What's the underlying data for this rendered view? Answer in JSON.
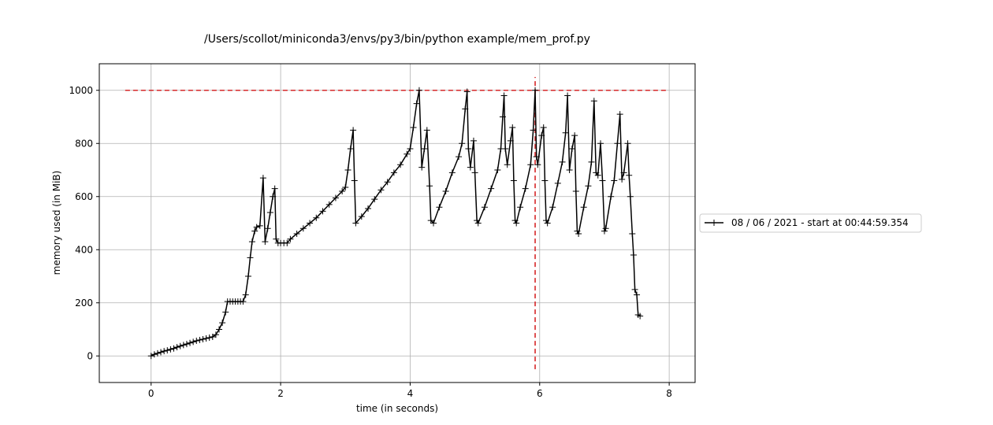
{
  "chart_data": {
    "type": "line",
    "title": "/Users/scollot/miniconda3/envs/py3/bin/python example/mem_prof.py",
    "xlabel": "time (in seconds)",
    "ylabel": "memory used (in MiB)",
    "xlim": [
      -0.8,
      8.4
    ],
    "ylim": [
      -100,
      1100
    ],
    "xticks": [
      0,
      2,
      4,
      6,
      8
    ],
    "yticks": [
      0,
      200,
      400,
      600,
      800,
      1000
    ],
    "grid": true,
    "legend_position": "center-right, outside the plot area",
    "colors": {
      "series": "#000000",
      "reference_lines": "#d62728"
    },
    "series": [
      {
        "name": "08 / 06 / 2021 - start at 00:44:59.354",
        "marker": "+",
        "points": [
          [
            0.0,
            0
          ],
          [
            0.05,
            6
          ],
          [
            0.1,
            10
          ],
          [
            0.15,
            14
          ],
          [
            0.2,
            18
          ],
          [
            0.25,
            21
          ],
          [
            0.3,
            25
          ],
          [
            0.35,
            28
          ],
          [
            0.4,
            33
          ],
          [
            0.45,
            37
          ],
          [
            0.5,
            41
          ],
          [
            0.55,
            45
          ],
          [
            0.6,
            49
          ],
          [
            0.65,
            53
          ],
          [
            0.7,
            57
          ],
          [
            0.75,
            60
          ],
          [
            0.8,
            63
          ],
          [
            0.85,
            66
          ],
          [
            0.9,
            69
          ],
          [
            0.95,
            72
          ],
          [
            1.0,
            80
          ],
          [
            1.05,
            100
          ],
          [
            1.1,
            125
          ],
          [
            1.15,
            165
          ],
          [
            1.18,
            205
          ],
          [
            1.22,
            205
          ],
          [
            1.26,
            205
          ],
          [
            1.3,
            205
          ],
          [
            1.34,
            205
          ],
          [
            1.38,
            205
          ],
          [
            1.42,
            205
          ],
          [
            1.46,
            230
          ],
          [
            1.5,
            300
          ],
          [
            1.53,
            370
          ],
          [
            1.56,
            430
          ],
          [
            1.6,
            470
          ],
          [
            1.63,
            485
          ],
          [
            1.68,
            490
          ],
          [
            1.73,
            670
          ],
          [
            1.76,
            430
          ],
          [
            1.8,
            480
          ],
          [
            1.84,
            540
          ],
          [
            1.88,
            600
          ],
          [
            1.91,
            630
          ],
          [
            1.93,
            440
          ],
          [
            1.96,
            425
          ],
          [
            2.0,
            425
          ],
          [
            2.05,
            425
          ],
          [
            2.1,
            425
          ],
          [
            2.15,
            440
          ],
          [
            2.25,
            460
          ],
          [
            2.35,
            480
          ],
          [
            2.45,
            500
          ],
          [
            2.55,
            520
          ],
          [
            2.65,
            545
          ],
          [
            2.75,
            570
          ],
          [
            2.85,
            595
          ],
          [
            2.95,
            620
          ],
          [
            3.0,
            635
          ],
          [
            3.04,
            700
          ],
          [
            3.08,
            780
          ],
          [
            3.12,
            850
          ],
          [
            3.14,
            660
          ],
          [
            3.16,
            500
          ],
          [
            3.25,
            525
          ],
          [
            3.35,
            555
          ],
          [
            3.45,
            590
          ],
          [
            3.55,
            625
          ],
          [
            3.65,
            655
          ],
          [
            3.75,
            690
          ],
          [
            3.85,
            720
          ],
          [
            3.95,
            760
          ],
          [
            4.0,
            780
          ],
          [
            4.05,
            860
          ],
          [
            4.1,
            950
          ],
          [
            4.14,
            1000
          ],
          [
            4.18,
            710
          ],
          [
            4.22,
            780
          ],
          [
            4.26,
            850
          ],
          [
            4.3,
            640
          ],
          [
            4.32,
            510
          ],
          [
            4.36,
            500
          ],
          [
            4.45,
            560
          ],
          [
            4.55,
            620
          ],
          [
            4.65,
            690
          ],
          [
            4.75,
            750
          ],
          [
            4.8,
            800
          ],
          [
            4.85,
            930
          ],
          [
            4.88,
            995
          ],
          [
            4.9,
            780
          ],
          [
            4.93,
            710
          ],
          [
            4.98,
            810
          ],
          [
            5.0,
            690
          ],
          [
            5.03,
            510
          ],
          [
            5.05,
            500
          ],
          [
            5.15,
            560
          ],
          [
            5.25,
            630
          ],
          [
            5.35,
            700
          ],
          [
            5.4,
            780
          ],
          [
            5.43,
            900
          ],
          [
            5.45,
            980
          ],
          [
            5.47,
            780
          ],
          [
            5.5,
            720
          ],
          [
            5.55,
            810
          ],
          [
            5.58,
            860
          ],
          [
            5.6,
            660
          ],
          [
            5.62,
            510
          ],
          [
            5.64,
            500
          ],
          [
            5.7,
            560
          ],
          [
            5.78,
            630
          ],
          [
            5.86,
            720
          ],
          [
            5.9,
            850
          ],
          [
            5.93,
            1000
          ],
          [
            5.95,
            750
          ],
          [
            5.97,
            720
          ],
          [
            6.03,
            830
          ],
          [
            6.06,
            860
          ],
          [
            6.08,
            660
          ],
          [
            6.1,
            510
          ],
          [
            6.12,
            500
          ],
          [
            6.2,
            560
          ],
          [
            6.28,
            650
          ],
          [
            6.35,
            730
          ],
          [
            6.4,
            840
          ],
          [
            6.43,
            980
          ],
          [
            6.46,
            700
          ],
          [
            6.5,
            780
          ],
          [
            6.54,
            830
          ],
          [
            6.56,
            620
          ],
          [
            6.58,
            470
          ],
          [
            6.6,
            460
          ],
          [
            6.68,
            560
          ],
          [
            6.75,
            640
          ],
          [
            6.8,
            730
          ],
          [
            6.84,
            960
          ],
          [
            6.87,
            690
          ],
          [
            6.9,
            680
          ],
          [
            6.94,
            800
          ],
          [
            6.97,
            660
          ],
          [
            7.0,
            470
          ],
          [
            7.02,
            480
          ],
          [
            7.1,
            600
          ],
          [
            7.15,
            660
          ],
          [
            7.2,
            800
          ],
          [
            7.24,
            910
          ],
          [
            7.27,
            665
          ],
          [
            7.3,
            690
          ],
          [
            7.36,
            800
          ],
          [
            7.38,
            680
          ],
          [
            7.4,
            600
          ],
          [
            7.43,
            460
          ],
          [
            7.45,
            380
          ],
          [
            7.47,
            250
          ],
          [
            7.5,
            230
          ],
          [
            7.52,
            155
          ],
          [
            7.55,
            150
          ]
        ]
      }
    ],
    "reference_lines": [
      {
        "orientation": "horizontal",
        "y": 1000,
        "x_range": [
          -0.4,
          7.95
        ],
        "style": "dashed"
      },
      {
        "orientation": "vertical",
        "x": 5.93,
        "y_range": [
          -50,
          1050
        ],
        "style": "dashed"
      }
    ],
    "legend": [
      "08 / 06 / 2021 - start at 00:44:59.354"
    ]
  }
}
